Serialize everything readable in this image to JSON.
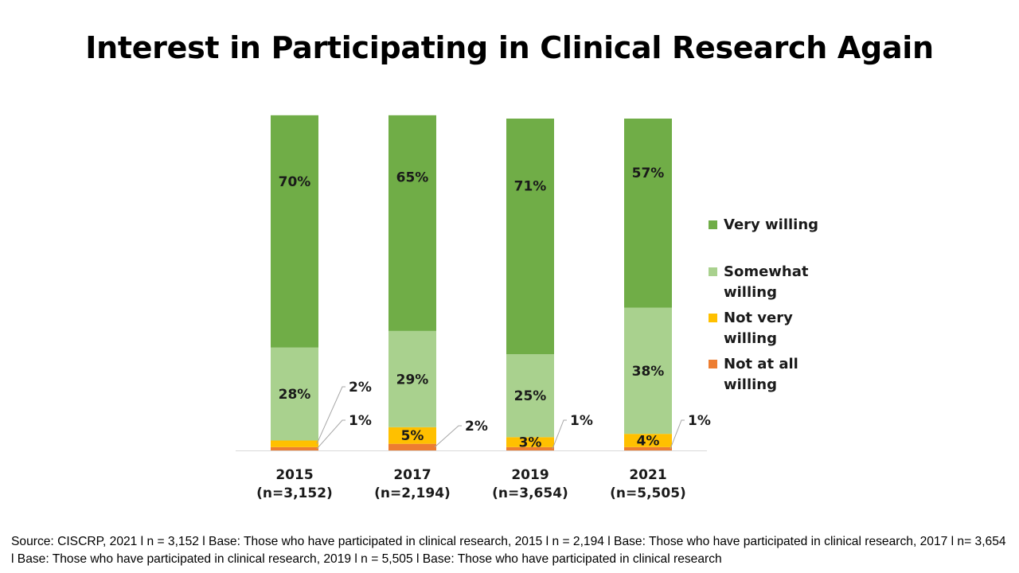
{
  "chart_data": {
    "type": "bar",
    "stacked": true,
    "title": "Interest in Participating in Clinical Research Again",
    "categories": [
      "2015\n(n=3,152)",
      "2017\n(n=2,194)",
      "2019\n(n=3,654)",
      "2021\n(n=5,505)"
    ],
    "series": [
      {
        "name": "Not at all willing",
        "color": "#ED7D31",
        "values": [
          1,
          2,
          1,
          1
        ],
        "labels": [
          "1%",
          "2%",
          "1%",
          "1%"
        ],
        "label_style": [
          "callout",
          "callout",
          "callout",
          "callout"
        ]
      },
      {
        "name": "Not very willing",
        "color": "#FFC000",
        "values": [
          2,
          5,
          3,
          4
        ],
        "labels": [
          "2%",
          "5%",
          "3%",
          "4%"
        ],
        "label_style": [
          "callout",
          "inside",
          "inside",
          "inside"
        ]
      },
      {
        "name": "Somewhat willing",
        "color": "#A9D18E",
        "values": [
          28,
          29,
          25,
          38
        ],
        "labels": [
          "28%",
          "29%",
          "25%",
          "38%"
        ],
        "label_style": [
          "inside",
          "inside",
          "inside",
          "inside"
        ]
      },
      {
        "name": "Very willing",
        "color": "#70AD47",
        "values": [
          70,
          65,
          71,
          57
        ],
        "labels": [
          "70%",
          "65%",
          "71%",
          "57%"
        ],
        "label_style": [
          "inside",
          "inside",
          "inside",
          "inside"
        ]
      }
    ],
    "ylim": [
      0,
      100
    ],
    "grid": false,
    "legend_position": "right"
  },
  "legend": [
    {
      "label": "Very willing",
      "color": "#70AD47"
    },
    {
      "label": "Somewhat willing",
      "color": "#A9D18E"
    },
    {
      "label": "Not very willing",
      "color": "#FFC000"
    },
    {
      "label": "Not at all willing",
      "color": "#ED7D31"
    }
  ],
  "source": "Source: CISCRP, 2021 l n = 3,152 l Base: Those who have participated in clinical research, 2015 l n = 2,194 l Base: Those who have participated in clinical research, 2017 l n= 3,654 l Base: Those who have participated in clinical research, 2019 l n = 5,505 l Base: Those who have participated in clinical research"
}
